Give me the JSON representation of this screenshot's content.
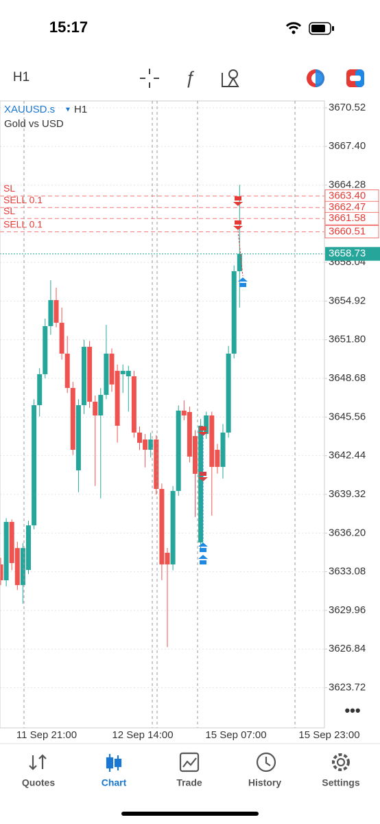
{
  "status_bar": {
    "time": "15:17"
  },
  "toolbar": {
    "timeframe": "H1"
  },
  "chart": {
    "type": "candlestick",
    "symbol": "XAUUSD.s",
    "timeframe": "H1",
    "description": "Gold vs USD",
    "up_color": "#26a69a",
    "down_color": "#ef5350",
    "ylim": [
      3620.48,
      3671.07
    ],
    "yticks": [
      3670.52,
      {
        "value": 3667.4,
        "label": "3667.40"
      },
      3664.28,
      3658.04,
      3654.92,
      {
        "value": 3651.8,
        "label": "3651.80"
      },
      3648.68,
      3645.56,
      3642.44,
      3639.32,
      {
        "value": 3636.2,
        "label": "3636.20"
      },
      3633.08,
      3629.96,
      3626.84,
      3623.72
    ],
    "candles": {
      "open": [
        3633.67,
        3632.39,
        3637.1,
        3634.99,
        3632.0,
        3633.22,
        3636.82,
        3646.52,
        3649.02,
        3652.9,
        3655.0,
        3653.17,
        3650.68,
        3647.91,
        3641.26,
        3646.52,
        3651.23,
        3646.8,
        3645.69,
        3647.35,
        3650.68,
        3649.29,
        3649.02,
        3648.85,
        3648.85,
        3644.31,
        3643.75,
        3642.92,
        3643.75,
        3639.76,
        3634.61,
        3633.67,
        3639.6,
        3646.08,
        3645.97,
        3644.03,
        3635.44,
        3644.2,
        3645.69,
        3642.92,
        3641.54,
        3644.31,
        3650.68,
        3657.33
      ],
      "high": [
        3634.2,
        3637.4,
        3637.3,
        3635.5,
        3635.4,
        3637.2,
        3647.0,
        3649.5,
        3653.5,
        3656.6,
        3656.0,
        3654.4,
        3652.1,
        3648.4,
        3647.0,
        3651.8,
        3651.7,
        3647.3,
        3647.9,
        3653.0,
        3651.1,
        3649.8,
        3649.8,
        3649.7,
        3649.3,
        3644.8,
        3644.2,
        3644.3,
        3644.1,
        3640.2,
        3635.0,
        3640.0,
        3646.5,
        3646.9,
        3646.4,
        3644.5,
        3645.4,
        3646.0,
        3646.0,
        3643.4,
        3645.0,
        3651.3,
        3657.8,
        3664.3
      ],
      "low": [
        3632.0,
        3631.9,
        3633.2,
        3631.6,
        3630.5,
        3632.9,
        3636.5,
        3645.6,
        3648.7,
        3652.2,
        3652.8,
        3650.2,
        3647.5,
        3642.5,
        3639.5,
        3645.8,
        3646.3,
        3640.0,
        3639.0,
        3647.0,
        3647.6,
        3643.5,
        3647.5,
        3646.0,
        3643.9,
        3642.9,
        3641.5,
        3642.3,
        3639.3,
        3632.4,
        3627.0,
        3633.2,
        3639.2,
        3645.3,
        3641.9,
        3637.5,
        3634.9,
        3643.8,
        3637.6,
        3641.0,
        3640.6,
        3643.9,
        3650.3,
        3654.4
      ],
      "close": [
        3632.39,
        3637.1,
        3633.78,
        3632.0,
        3634.99,
        3636.82,
        3646.52,
        3649.02,
        3652.9,
        3655.0,
        3653.17,
        3650.68,
        3647.91,
        3642.92,
        3646.52,
        3651.23,
        3646.8,
        3645.69,
        3647.35,
        3650.68,
        3648.19,
        3644.86,
        3649.29,
        3649.29,
        3644.31,
        3643.48,
        3642.92,
        3643.75,
        3639.76,
        3633.67,
        3633.67,
        3639.6,
        3646.08,
        3645.69,
        3642.37,
        3640.98,
        3644.86,
        3645.69,
        3641.54,
        3641.54,
        3644.31,
        3650.68,
        3657.33,
        3658.73
      ]
    },
    "levels": [
      {
        "name": "SL",
        "price": {
          "value": 3663.4,
          "label": "3663.40"
        }
      },
      {
        "name": "SELL 0.1",
        "price": 3662.47
      },
      {
        "name": "SL",
        "price": 3661.58
      },
      {
        "name": "SELL 0.1",
        "price": 3660.51
      }
    ],
    "current_price": 3658.73,
    "time_labels": [
      "11 Sep 21:00",
      "12 Sep 14:00",
      "15 Sep 07:00",
      "15 Sep 23:00"
    ]
  },
  "tabs": [
    "Quotes",
    "Chart",
    "Trade",
    "History",
    "Settings"
  ]
}
